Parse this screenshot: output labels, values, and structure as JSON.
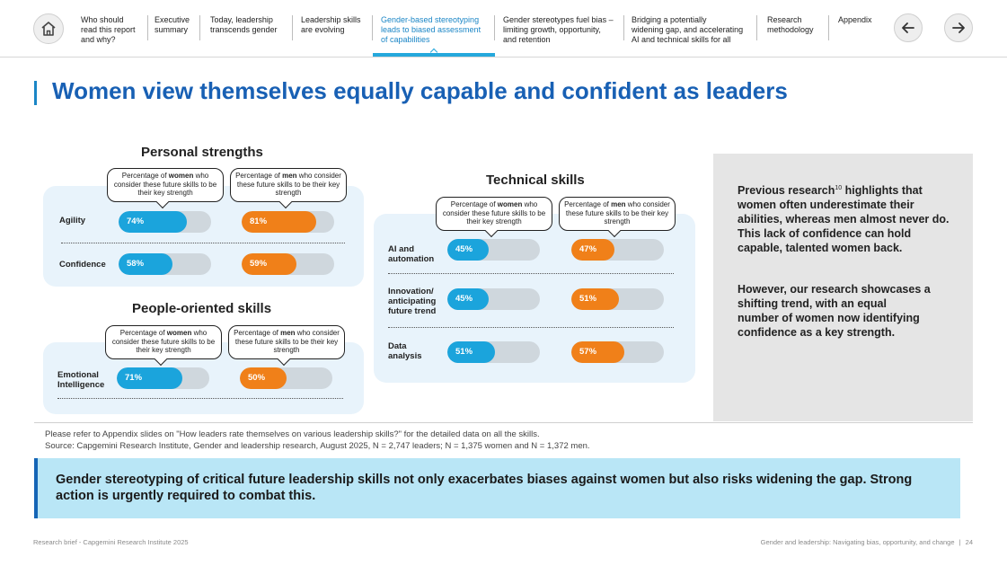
{
  "nav": {
    "items": [
      {
        "label": "Who should read this report and why?",
        "lines": [
          "Who should",
          "read this report",
          "and why?"
        ]
      },
      {
        "label": "Executive summary",
        "lines": [
          "Executive",
          "summary"
        ]
      },
      {
        "label": "Today, leadership transcends gender",
        "lines": [
          "Today, leadership",
          "transcends gender"
        ]
      },
      {
        "label": "Leadership skills are evolving",
        "lines": [
          "Leadership skills",
          "are evolving"
        ]
      },
      {
        "label": "Gender-based stereotyping leads to biased assessment of capabilities",
        "lines": [
          "Gender-based stereotyping",
          "leads to biased assessment",
          "of capabilities"
        ]
      },
      {
        "label": "Gender stereotypes fuel bias – limiting growth, opportunity, and retention",
        "lines": [
          "Gender stereotypes fuel bias –",
          "limiting growth, opportunity,",
          "and retention"
        ]
      },
      {
        "label": "Bridging a potentially widening gap, and accelerating AI and technical skills for all",
        "lines": [
          "Bridging a potentially",
          "widening gap, and accelerating",
          "AI and technical skills for all"
        ]
      },
      {
        "label": "Research methodology",
        "lines": [
          "Research",
          "methodology"
        ]
      },
      {
        "label": "Appendix",
        "lines": [
          "Appendix"
        ]
      }
    ],
    "active_index": 4,
    "home_icon": "home-icon",
    "prev_icon": "arrow-left-icon",
    "next_icon": "arrow-right-icon"
  },
  "title": "Women view themselves equally capable and confident as leaders",
  "callouts": {
    "women": {
      "pre": "Percentage of ",
      "bold": "women",
      "post": " who consider these future skills to be their key strength"
    },
    "men": {
      "pre": "Percentage of ",
      "bold": "men",
      "post": " who consider these future skills to be their key strength"
    }
  },
  "personal": {
    "heading": "Personal strengths",
    "rows": [
      {
        "label_lines": [
          "Agility"
        ],
        "women": 74,
        "men": 81,
        "women_label": "74%",
        "men_label": "81%"
      },
      {
        "label_lines": [
          "Confidence"
        ],
        "women": 58,
        "men": 59,
        "women_label": "58%",
        "men_label": "59%"
      }
    ]
  },
  "people": {
    "heading": "People-oriented skills",
    "rows": [
      {
        "label_lines": [
          "Emotional",
          "Intelligence"
        ],
        "women": 71,
        "men": 50,
        "women_label": "71%",
        "men_label": "50%"
      }
    ]
  },
  "technical": {
    "heading": "Technical skills",
    "rows": [
      {
        "label_lines": [
          "AI and",
          "automation"
        ],
        "women": 45,
        "men": 47,
        "women_label": "45%",
        "men_label": "47%"
      },
      {
        "label_lines": [
          "Innovation/",
          "anticipating",
          "future trend"
        ],
        "women": 45,
        "men": 51,
        "women_label": "45%",
        "men_label": "51%"
      },
      {
        "label_lines": [
          "Data",
          "analysis"
        ],
        "women": 51,
        "men": 57,
        "women_label": "51%",
        "men_label": "57%"
      }
    ]
  },
  "side": {
    "para1_pre": "Previous research",
    "para1_ref": "10",
    "para1_post": " highlights that women often underestimate their abilities, whereas men almost never do. This lack of confidence can hold capable, talented women back.",
    "para2": "However, our research showcases a shifting trend, with an equal number of women now identifying confidence as a key strength."
  },
  "notes": {
    "line1": "Please refer to Appendix slides on \"How leaders rate themselves on various leadership skills?\" for the detailed data on all the skills.",
    "line2": "Source: Capgemini Research Institute, Gender and leadership research, August 2025, N = 2,747 leaders; N = 1,375 women and N = 1,372 men."
  },
  "banner": "Gender stereotyping of critical future leadership skills not only exacerbates biases against women but also risks widening the gap. Strong action is urgently required to combat this.",
  "footer": {
    "left": "Research brief - Capgemini Research Institute 2025",
    "right": "Gender and leadership: Navigating bias, opportunity, and change",
    "page": "24"
  },
  "colors": {
    "women": "#1ba4dc",
    "men": "#f08019",
    "title": "#1860b4",
    "accent": "#25a8dc"
  }
}
